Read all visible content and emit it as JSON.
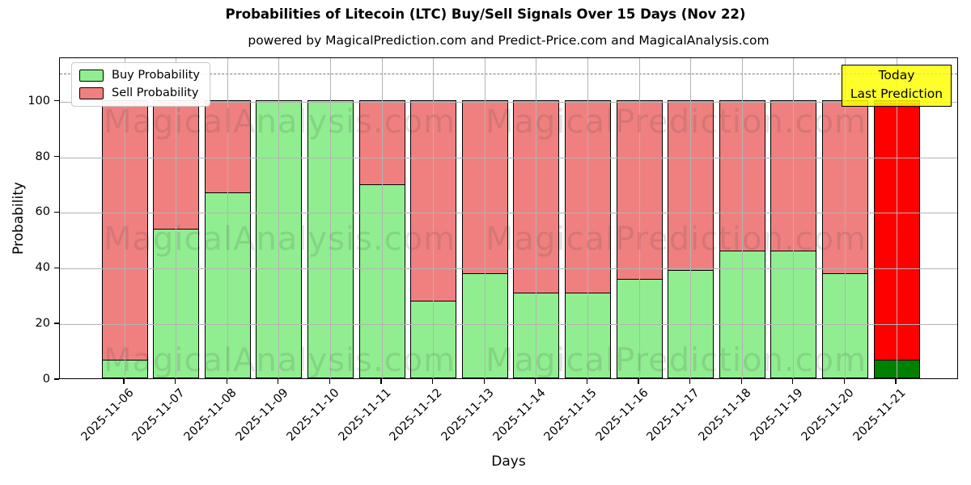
{
  "title": "Probabilities of Litecoin (LTC) Buy/Sell Signals Over 15 Days (Nov 22)",
  "subtitle": "powered by MagicalPrediction.com and Predict-Price.com and MagicalAnalysis.com",
  "legend": {
    "items": [
      {
        "label": "Buy Probability",
        "color": "#90ee90"
      },
      {
        "label": "Sell Probability",
        "color": "#f08080"
      }
    ]
  },
  "annotation_box": {
    "line1": "Today",
    "line2": "Last Prediction",
    "bg_color": "#ffff00"
  },
  "axes": {
    "ylabel": "Probability",
    "xlabel": "Days",
    "yticks": [
      0,
      20,
      40,
      60,
      80,
      100
    ],
    "ylim": [
      0,
      115.6
    ],
    "dashed_line_y": 110,
    "grid": "on"
  },
  "watermarks": [
    "MagicalAnalysis.com",
    "MagicalPrediction.com"
  ],
  "chart_data": {
    "type": "bar",
    "stacked": true,
    "title": "Probabilities of Litecoin (LTC) Buy/Sell Signals Over 15 Days (Nov 22)",
    "xlabel": "Days",
    "ylabel": "Probability",
    "ylim": [
      0,
      115.6
    ],
    "legend_position": "upper-left",
    "categories": [
      "2025-11-06",
      "2025-11-07",
      "2025-11-08",
      "2025-11-09",
      "2025-11-10",
      "2025-11-11",
      "2025-11-12",
      "2025-11-13",
      "2025-11-14",
      "2025-11-15",
      "2025-11-16",
      "2025-11-17",
      "2025-11-18",
      "2025-11-19",
      "2025-11-20",
      "2025-11-21"
    ],
    "series": [
      {
        "name": "Buy Probability",
        "color": "#90ee90",
        "values": [
          7,
          54,
          67,
          100,
          100,
          70,
          28,
          38,
          31,
          31,
          36,
          39,
          46,
          46,
          38,
          7
        ]
      },
      {
        "name": "Sell Probability",
        "color": "#f08080",
        "values": [
          93,
          46,
          33,
          0,
          0,
          30,
          72,
          62,
          69,
          69,
          64,
          61,
          54,
          54,
          62,
          93
        ]
      }
    ],
    "highlight_last_bar": {
      "index": 15,
      "buy_color": "#008000",
      "sell_color": "#ff0000",
      "note": "Today / Last Prediction"
    }
  }
}
